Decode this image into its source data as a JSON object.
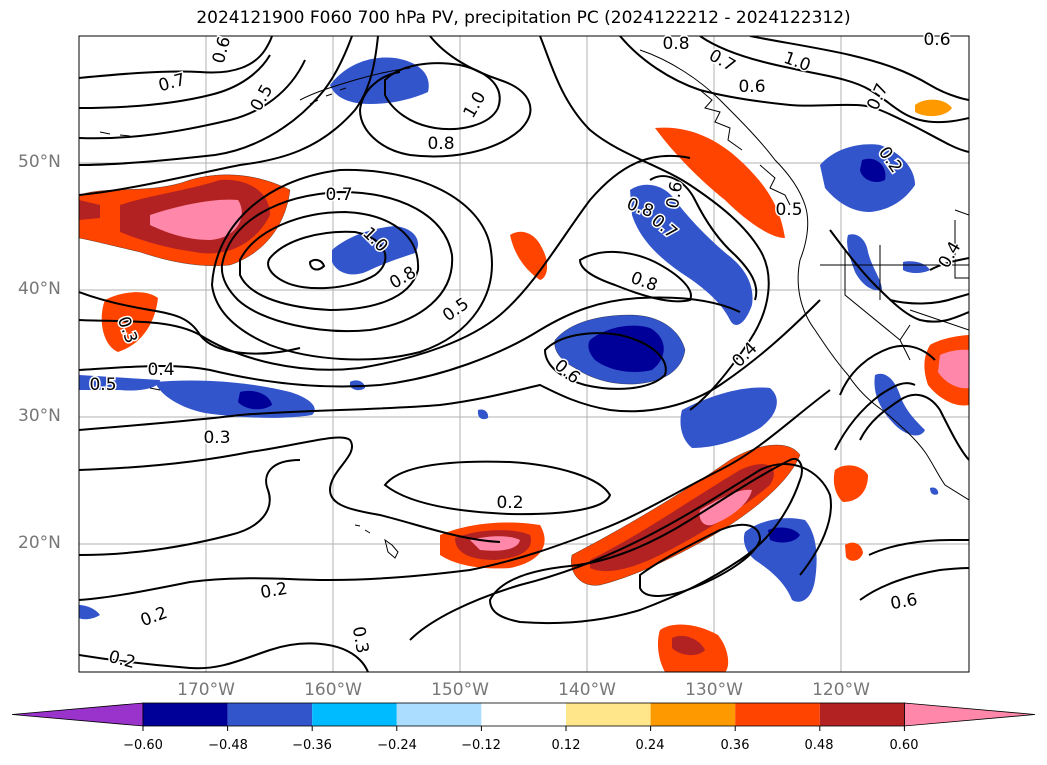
{
  "title": "2024121900 F060 700 hPa PV, precipitation PC (2024122212 - 2024122312)",
  "lat_labels": [
    "50°N",
    "40°N",
    "30°N",
    "20°N"
  ],
  "lon_labels": [
    "170°W",
    "160°W",
    "150°W",
    "140°W",
    "130°W",
    "120°W"
  ],
  "colorbar": {
    "ticks": [
      "−0.60",
      "−0.48",
      "−0.36",
      "−0.24",
      "−0.12",
      "0.12",
      "0.24",
      "0.36",
      "0.48",
      "0.60"
    ],
    "colors": [
      "#9933cc",
      "#000099",
      "#3355cc",
      "#00bbff",
      "#aaddff",
      "#ffffff",
      "#ffe68a",
      "#ff9900",
      "#ff4400",
      "#b22222",
      "#ff88aa",
      "#ff88aa"
    ]
  },
  "contour_labels": [
    "0.7",
    "0.5",
    "0.6",
    "1.0",
    "0.8",
    "0.7",
    "1.0",
    "0.8",
    "0.5",
    "0.4",
    "0.3",
    "0.5",
    "0.3",
    "0.2",
    "0.2",
    "0.2",
    "0.2",
    "0.3",
    "0.6",
    "0.4",
    "0.8",
    "0.7",
    "0.6",
    "0.6",
    "0.8",
    "0.7",
    "1.0",
    "0.8",
    "0.7",
    "0.5",
    "0.6",
    "0.4",
    "0.2",
    "0.6",
    "0.7",
    "0.5"
  ]
}
